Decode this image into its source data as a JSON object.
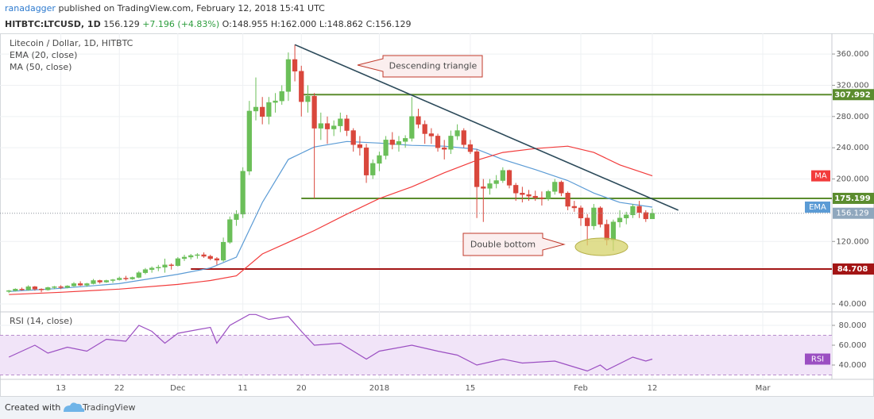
{
  "header": {
    "author": "ranadagger",
    "published": "published on TradingView.com, February 12, 2018 15:41 UTC",
    "symbol": "HITBTC:LTCUSD, 1D",
    "last": "156.129",
    "change": "+7.196 (+4.83%)",
    "quote": [
      "O:148.955",
      "H:162.000",
      "L:148.862",
      "C:156.129"
    ]
  },
  "footer": {
    "created": "Created with",
    "brand": "TradingView"
  },
  "chart_data": [
    {
      "type": "candlestick",
      "title": "Litecoin / Dollar, 1D, HITBTC",
      "up_color": "#6bbf59",
      "down_color": "#d9473c",
      "grid": true,
      "xlim": [
        "2017-11-04",
        "2018-03-12"
      ],
      "ylim": [
        32.9,
        386.5
      ],
      "yticks": [
        {
          "value": 360,
          "label": "360.000"
        },
        {
          "value": 320,
          "label": "320.000"
        },
        {
          "value": 280,
          "label": "280.000"
        },
        {
          "value": 240,
          "label": "240.000"
        },
        {
          "value": 200,
          "label": "200.000"
        },
        {
          "value": 120,
          "label": "120.000"
        },
        {
          "value": 40,
          "label": "40.000"
        }
      ],
      "x": [
        "2017-11-05",
        "2017-11-06",
        "2017-11-07",
        "2017-11-08",
        "2017-11-09",
        "2017-11-10",
        "2017-11-11",
        "2017-11-12",
        "2017-11-13",
        "2017-11-14",
        "2017-11-15",
        "2017-11-16",
        "2017-11-17",
        "2017-11-18",
        "2017-11-19",
        "2017-11-20",
        "2017-11-21",
        "2017-11-22",
        "2017-11-23",
        "2017-11-24",
        "2017-11-25",
        "2017-11-26",
        "2017-11-27",
        "2017-11-28",
        "2017-11-29",
        "2017-11-30",
        "2017-12-01",
        "2017-12-02",
        "2017-12-03",
        "2017-12-04",
        "2017-12-05",
        "2017-12-06",
        "2017-12-07",
        "2017-12-08",
        "2017-12-09",
        "2017-12-10",
        "2017-12-11",
        "2017-12-12",
        "2017-12-13",
        "2017-12-14",
        "2017-12-15",
        "2017-12-16",
        "2017-12-17",
        "2017-12-18",
        "2017-12-19",
        "2017-12-20",
        "2017-12-21",
        "2017-12-22",
        "2017-12-23",
        "2017-12-24",
        "2017-12-25",
        "2017-12-26",
        "2017-12-27",
        "2017-12-28",
        "2017-12-29",
        "2017-12-30",
        "2017-12-31",
        "2018-01-01",
        "2018-01-02",
        "2018-01-03",
        "2018-01-04",
        "2018-01-05",
        "2018-01-06",
        "2018-01-07",
        "2018-01-08",
        "2018-01-09",
        "2018-01-10",
        "2018-01-11",
        "2018-01-12",
        "2018-01-13",
        "2018-01-14",
        "2018-01-15",
        "2018-01-16",
        "2018-01-17",
        "2018-01-18",
        "2018-01-19",
        "2018-01-20",
        "2018-01-21",
        "2018-01-22",
        "2018-01-23",
        "2018-01-24",
        "2018-01-25",
        "2018-01-26",
        "2018-01-27",
        "2018-01-28",
        "2018-01-29",
        "2018-01-30",
        "2018-01-31",
        "2018-02-01",
        "2018-02-02",
        "2018-02-03",
        "2018-02-04",
        "2018-02-05",
        "2018-02-06",
        "2018-02-07",
        "2018-02-08",
        "2018-02-09",
        "2018-02-10",
        "2018-02-11",
        "2018-02-12"
      ],
      "ohlc": [
        [
          56,
          58,
          54,
          57
        ],
        [
          57,
          60,
          56,
          59
        ],
        [
          59,
          61,
          57,
          58
        ],
        [
          58,
          64,
          57,
          62
        ],
        [
          62,
          63,
          57,
          59
        ],
        [
          59,
          60,
          55,
          58
        ],
        [
          58,
          62,
          57,
          61
        ],
        [
          61,
          63,
          59,
          62
        ],
        [
          62,
          64,
          59,
          61
        ],
        [
          61,
          64,
          60,
          63
        ],
        [
          63,
          68,
          62,
          66
        ],
        [
          66,
          69,
          63,
          64
        ],
        [
          64,
          67,
          62,
          66
        ],
        [
          66,
          72,
          65,
          70
        ],
        [
          70,
          71,
          66,
          68
        ],
        [
          68,
          71,
          67,
          70
        ],
        [
          70,
          72,
          67,
          71
        ],
        [
          71,
          75,
          70,
          73
        ],
        [
          73,
          76,
          70,
          72
        ],
        [
          72,
          75,
          71,
          74
        ],
        [
          74,
          82,
          73,
          80
        ],
        [
          80,
          86,
          78,
          84
        ],
        [
          84,
          88,
          80,
          86
        ],
        [
          86,
          90,
          82,
          87
        ],
        [
          87,
          98,
          80,
          90
        ],
        [
          90,
          92,
          84,
          89
        ],
        [
          89,
          100,
          88,
          98
        ],
        [
          98,
          103,
          95,
          100
        ],
        [
          100,
          104,
          97,
          102
        ],
        [
          102,
          105,
          98,
          103
        ],
        [
          103,
          106,
          99,
          101
        ],
        [
          101,
          103,
          96,
          98
        ],
        [
          98,
          100,
          90,
          96
        ],
        [
          96,
          125,
          94,
          119
        ],
        [
          119,
          152,
          117,
          148
        ],
        [
          148,
          160,
          140,
          155
        ],
        [
          155,
          215,
          150,
          210
        ],
        [
          210,
          300,
          205,
          287
        ],
        [
          287,
          330,
          275,
          292
        ],
        [
          292,
          305,
          270,
          280
        ],
        [
          280,
          305,
          270,
          298
        ],
        [
          298,
          310,
          285,
          300
        ],
        [
          300,
          320,
          295,
          312
        ],
        [
          312,
          362,
          300,
          353
        ],
        [
          353,
          372,
          325,
          338
        ],
        [
          338,
          345,
          280,
          299
        ],
        [
          299,
          320,
          285,
          306
        ],
        [
          306,
          310,
          175,
          265
        ],
        [
          265,
          285,
          250,
          271
        ],
        [
          271,
          280,
          245,
          264
        ],
        [
          264,
          275,
          255,
          268
        ],
        [
          268,
          285,
          260,
          277
        ],
        [
          277,
          282,
          255,
          262
        ],
        [
          262,
          265,
          235,
          244
        ],
        [
          244,
          255,
          230,
          240
        ],
        [
          240,
          245,
          195,
          205
        ],
        [
          205,
          225,
          200,
          220
        ],
        [
          220,
          235,
          210,
          230
        ],
        [
          230,
          255,
          225,
          250
        ],
        [
          250,
          260,
          238,
          244
        ],
        [
          244,
          255,
          235,
          248
        ],
        [
          248,
          256,
          240,
          252
        ],
        [
          252,
          305,
          248,
          280
        ],
        [
          280,
          290,
          265,
          270
        ],
        [
          270,
          275,
          245,
          258
        ],
        [
          258,
          265,
          245,
          255
        ],
        [
          255,
          258,
          235,
          240
        ],
        [
          240,
          250,
          225,
          238
        ],
        [
          238,
          262,
          232,
          255
        ],
        [
          255,
          270,
          250,
          262
        ],
        [
          262,
          265,
          240,
          244
        ],
        [
          244,
          250,
          232,
          235
        ],
        [
          235,
          238,
          150,
          190
        ],
        [
          190,
          200,
          145,
          188
        ],
        [
          188,
          200,
          180,
          194
        ],
        [
          194,
          205,
          188,
          198
        ],
        [
          198,
          215,
          195,
          211
        ],
        [
          211,
          212,
          188,
          192
        ],
        [
          192,
          195,
          172,
          182
        ],
        [
          182,
          190,
          170,
          180
        ],
        [
          180,
          186,
          172,
          178
        ],
        [
          178,
          185,
          172,
          176
        ],
        [
          176,
          184,
          166,
          175
        ],
        [
          175,
          186,
          172,
          184
        ],
        [
          184,
          200,
          180,
          196
        ],
        [
          196,
          198,
          178,
          182
        ],
        [
          182,
          184,
          160,
          165
        ],
        [
          165,
          172,
          158,
          163
        ],
        [
          163,
          166,
          140,
          150
        ],
        [
          150,
          155,
          115,
          140
        ],
        [
          140,
          168,
          135,
          163
        ],
        [
          163,
          165,
          138,
          142
        ],
        [
          142,
          148,
          115,
          122
        ],
        [
          122,
          148,
          108,
          145
        ],
        [
          145,
          160,
          138,
          150
        ],
        [
          150,
          158,
          142,
          154
        ],
        [
          154,
          168,
          150,
          165
        ],
        [
          165,
          172,
          150,
          157
        ],
        [
          157,
          160,
          145,
          148.933
        ],
        [
          148.955,
          162,
          148.862,
          156.129
        ]
      ],
      "series": [
        {
          "name": "EMA (20, close)",
          "tag": "EMA",
          "color": "#5b9bd5",
          "x": [
            "2017-11-05",
            "2017-11-13",
            "2017-11-22",
            "2017-12-01",
            "2017-12-06",
            "2017-12-10",
            "2017-12-14",
            "2017-12-18",
            "2017-12-22",
            "2017-12-27",
            "2018-01-01",
            "2018-01-06",
            "2018-01-11",
            "2018-01-16",
            "2018-01-20",
            "2018-01-25",
            "2018-01-30",
            "2018-02-03",
            "2018-02-07",
            "2018-02-12"
          ],
          "values": [
            56,
            60,
            66,
            78,
            86,
            100,
            170,
            225,
            241,
            248,
            246,
            243,
            242,
            238,
            225,
            212,
            198,
            182,
            170,
            164
          ]
        },
        {
          "name": "MA (50, close)",
          "tag": "MA",
          "color": "#f23b3b",
          "x": [
            "2017-11-05",
            "2017-11-13",
            "2017-11-22",
            "2017-12-01",
            "2017-12-06",
            "2017-12-10",
            "2017-12-14",
            "2017-12-18",
            "2017-12-22",
            "2017-12-27",
            "2018-01-01",
            "2018-01-06",
            "2018-01-11",
            "2018-01-16",
            "2018-01-20",
            "2018-01-25",
            "2018-01-30",
            "2018-02-03",
            "2018-02-07",
            "2018-02-12"
          ],
          "values": [
            52,
            55,
            59,
            65,
            70,
            76,
            104,
            119,
            134,
            155,
            175,
            190,
            208,
            224,
            234,
            239,
            242,
            234,
            218,
            204
          ]
        }
      ],
      "last_price": 156.129,
      "last_color": "#8fa7bd",
      "levels": [
        {
          "value": 307.992,
          "from": "2017-12-20",
          "color": "#5b8c2e"
        },
        {
          "value": 175.199,
          "from": "2017-12-20",
          "color": "#5b8c2e"
        },
        {
          "value": 84.708,
          "from": "2017-12-03",
          "color": "#a31515"
        }
      ],
      "trendline": {
        "x": [
          "2017-12-19",
          "2018-02-16"
        ],
        "values": [
          372,
          160
        ],
        "color": "#2c4a5a"
      },
      "annotations": [
        "Descending triangle",
        "Double bottom"
      ]
    },
    {
      "type": "line",
      "title": "RSI (14, close)",
      "tag": "RSI",
      "color": "#9b4fc2",
      "band_color": "#f1e4f8",
      "xlim": [
        "2017-11-04",
        "2018-03-12"
      ],
      "ylim": [
        25.6,
        92
      ],
      "band": [
        30,
        70
      ],
      "grid": true,
      "yticks": [
        {
          "value": 80,
          "label": "80.000"
        },
        {
          "value": 60,
          "label": "60.000"
        },
        {
          "value": 40,
          "label": "40.000"
        }
      ],
      "xticks": [
        {
          "value": "2017-11-13",
          "label": "13"
        },
        {
          "value": "2017-11-22",
          "label": "22"
        },
        {
          "value": "2017-12-01",
          "label": "Dec"
        },
        {
          "value": "2017-12-11",
          "label": "11"
        },
        {
          "value": "2017-12-20",
          "label": "20"
        },
        {
          "value": "2018-01-01",
          "label": "2018"
        },
        {
          "value": "2018-01-15",
          "label": "15"
        },
        {
          "value": "2018-02-01",
          "label": "Feb"
        },
        {
          "value": "2018-02-12",
          "label": "12"
        },
        {
          "value": "2018-03-01",
          "label": "Mar"
        }
      ],
      "x": [
        "2017-11-05",
        "2017-11-09",
        "2017-11-11",
        "2017-11-14",
        "2017-11-17",
        "2017-11-20",
        "2017-11-23",
        "2017-11-25",
        "2017-11-27",
        "2017-11-29",
        "2017-12-01",
        "2017-12-06",
        "2017-12-07",
        "2017-12-09",
        "2017-12-12",
        "2017-12-13",
        "2017-12-15",
        "2017-12-18",
        "2017-12-20",
        "2017-12-22",
        "2017-12-26",
        "2017-12-30",
        "2018-01-01",
        "2018-01-06",
        "2018-01-10",
        "2018-01-13",
        "2018-01-16",
        "2018-01-20",
        "2018-01-23",
        "2018-01-28",
        "2018-01-31",
        "2018-02-02",
        "2018-02-04",
        "2018-02-05",
        "2018-02-09",
        "2018-02-11",
        "2018-02-12"
      ],
      "values": [
        48,
        60,
        52,
        58,
        54,
        66,
        64,
        80,
        74,
        62,
        72,
        78,
        62,
        80,
        91,
        91,
        86,
        89,
        74,
        60,
        62,
        46,
        54,
        60,
        54,
        50,
        40,
        46,
        42,
        44,
        38,
        34,
        40,
        35,
        48,
        44,
        46
      ]
    }
  ]
}
